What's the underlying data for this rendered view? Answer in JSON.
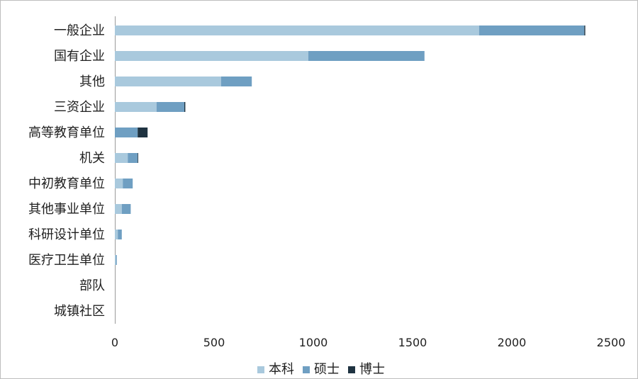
{
  "chart_data": {
    "type": "bar",
    "orientation": "horizontal",
    "stacked": true,
    "categories": [
      "一般企业",
      "国有企业",
      "其他",
      "三资企业",
      "高等教育单位",
      "机关",
      "中初教育单位",
      "其他事业单位",
      "科研设计单位",
      "医疗卫生单位",
      "部队",
      "城镇社区"
    ],
    "series": [
      {
        "name": "本科",
        "color": "#a9c9dd",
        "values": [
          1835,
          975,
          535,
          210,
          0,
          65,
          40,
          35,
          15,
          5,
          0,
          0
        ]
      },
      {
        "name": "硕士",
        "color": "#6f9fc2",
        "values": [
          530,
          585,
          155,
          140,
          115,
          50,
          50,
          45,
          20,
          5,
          0,
          0
        ]
      },
      {
        "name": "博士",
        "color": "#1f3341",
        "values": [
          5,
          0,
          0,
          5,
          50,
          3,
          0,
          0,
          0,
          0,
          0,
          0
        ]
      }
    ],
    "x_ticks": [
      "0",
      "500",
      "1000",
      "1500",
      "2000",
      "2500"
    ],
    "xlim": [
      0,
      2500
    ],
    "grid": false,
    "legend_position": "bottom",
    "title": "",
    "xlabel": "",
    "ylabel": ""
  }
}
